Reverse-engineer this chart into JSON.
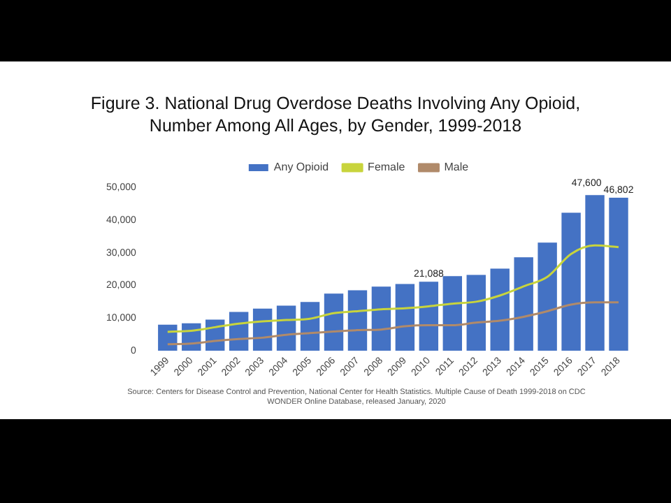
{
  "chart_data": {
    "type": "bar",
    "title": "Figure 3. National Drug Overdose Deaths Involving Any Opioid, Number Among All Ages, by Gender, 1999-2018",
    "categories": [
      "1999",
      "2000",
      "2001",
      "2002",
      "2003",
      "2004",
      "2005",
      "2006",
      "2007",
      "2008",
      "2009",
      "2010",
      "2011",
      "2012",
      "2013",
      "2014",
      "2015",
      "2016",
      "2017",
      "2018"
    ],
    "series": [
      {
        "name": "Any Opioid",
        "color": "#4472c4",
        "values": [
          8000,
          8400,
          9500,
          11900,
          12900,
          13800,
          14900,
          17500,
          18500,
          19600,
          20400,
          21088,
          22800,
          23200,
          25100,
          28600,
          33100,
          42200,
          47600,
          46802
        ],
        "value_labels": [
          null,
          null,
          null,
          null,
          null,
          null,
          null,
          null,
          null,
          null,
          null,
          "21,088",
          null,
          null,
          null,
          null,
          null,
          null,
          "47,600",
          "46,802"
        ]
      },
      {
        "name": "Female",
        "type": "line",
        "color": "#c8d43c",
        "values": [
          5800,
          6100,
          7200,
          8300,
          9000,
          9400,
          9800,
          11500,
          12100,
          12700,
          13000,
          13600,
          14400,
          15000,
          16900,
          19700,
          22600,
          29600,
          32200,
          31700
        ]
      },
      {
        "name": "Male",
        "type": "line",
        "color": "#b08a6a",
        "values": [
          2000,
          2200,
          3000,
          3600,
          4000,
          4900,
          5400,
          5900,
          6300,
          6500,
          7500,
          7800,
          7800,
          8600,
          9200,
          10400,
          12100,
          14100,
          14800,
          14800
        ]
      }
    ],
    "ylim": [
      0,
      50000
    ],
    "yticks": [
      {
        "value": 0,
        "label": "0"
      },
      {
        "value": 10000,
        "label": "10,000"
      },
      {
        "value": 20000,
        "label": "20,000"
      },
      {
        "value": 30000,
        "label": "30,000"
      },
      {
        "value": 40000,
        "label": "40,000"
      },
      {
        "value": 50000,
        "label": "50,000"
      }
    ],
    "grid": false,
    "legend": "top",
    "marker": "none",
    "line_style": "solid",
    "annotations": [
      "Source: Centers for Disease Control and Prevention, National Center for Health Statistics. Multiple Cause of Death 1999-2018 on CDC WONDER Online Database, released January, 2020"
    ]
  }
}
